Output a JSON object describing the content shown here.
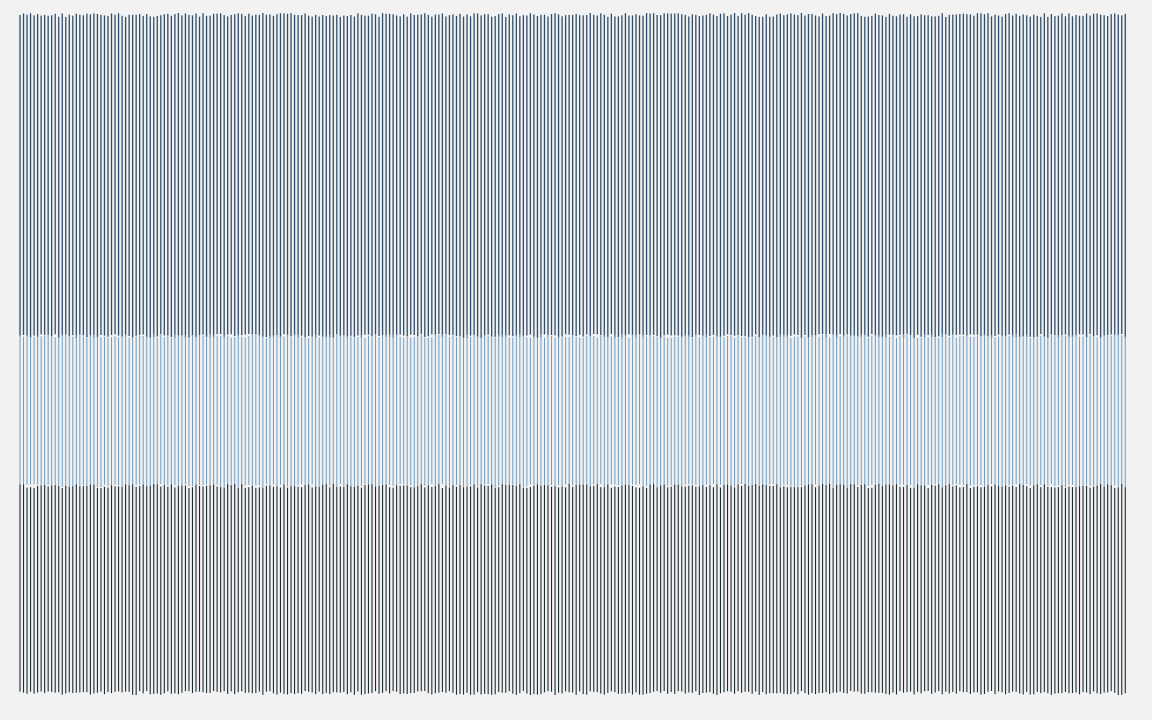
{
  "bands": [
    {
      "id": "band-top",
      "color": "#2f4d68",
      "style": "dark slate-blue vertical lines"
    },
    {
      "id": "band-middle",
      "color": "#6f9cc2",
      "style": "light blue vertical lines"
    },
    {
      "id": "band-bottom",
      "color": "#1e2b33",
      "style": "near-black vertical lines"
    }
  ],
  "background_color": "#f2f2f2"
}
